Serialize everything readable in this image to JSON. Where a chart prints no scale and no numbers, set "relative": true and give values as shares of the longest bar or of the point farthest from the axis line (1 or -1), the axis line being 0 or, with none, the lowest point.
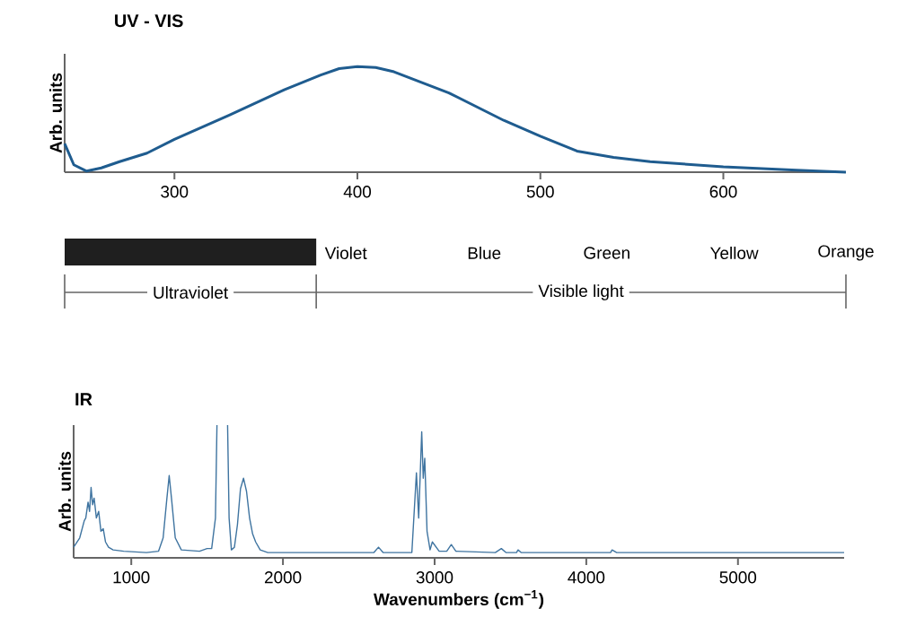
{
  "chart_data": [
    {
      "type": "line",
      "title": "UV - VIS",
      "ylabel": "Arb. units",
      "relative": true,
      "color": "#1f5c8f",
      "xlim": [
        240,
        667
      ],
      "xticks": [
        300,
        400,
        500,
        600
      ],
      "x": [
        240,
        245,
        252,
        260,
        270,
        285,
        300,
        330,
        360,
        380,
        390,
        400,
        410,
        420,
        450,
        480,
        500,
        520,
        540,
        560,
        600,
        640,
        667
      ],
      "values": [
        0.27,
        0.07,
        0.01,
        0.04,
        0.1,
        0.18,
        0.31,
        0.54,
        0.78,
        0.92,
        0.98,
        1,
        0.99,
        0.95,
        0.75,
        0.49,
        0.34,
        0.2,
        0.14,
        0.1,
        0.05,
        0.02,
        0.0
      ],
      "annotations": [
        "Violet",
        "Blue",
        "Green",
        "Yellow",
        "Orange",
        "Ultraviolet",
        "Visible light"
      ]
    },
    {
      "type": "line",
      "title": "IR",
      "ylabel": "Arb. units",
      "xlabel": "Wavenumbers (cm$^{−1}$)",
      "relative": true,
      "color": "#3f74a0",
      "xlim": [
        620,
        5700
      ],
      "xticks": [
        1000,
        2000,
        3000,
        4000,
        5000
      ],
      "x": [
        620,
        660,
        690,
        700,
        715,
        725,
        735,
        745,
        755,
        770,
        785,
        800,
        815,
        830,
        850,
        880,
        950,
        1100,
        1180,
        1210,
        1235,
        1250,
        1265,
        1290,
        1330,
        1450,
        1500,
        1530,
        1555,
        1565,
        1600,
        1635,
        1645,
        1660,
        1680,
        1700,
        1720,
        1740,
        1760,
        1780,
        1800,
        1820,
        1850,
        1900,
        2600,
        2630,
        2660,
        2850,
        2880,
        2895,
        2915,
        2925,
        2935,
        2950,
        2970,
        2985,
        3030,
        3080,
        3110,
        3140,
        3400,
        3440,
        3470,
        3540,
        3550,
        3570,
        4160,
        4170,
        4200,
        5700
      ],
      "values": [
        0.08,
        0.15,
        0.28,
        0.3,
        0.42,
        0.35,
        0.53,
        0.4,
        0.45,
        0.3,
        0.35,
        0.2,
        0.22,
        0.12,
        0.08,
        0.06,
        0.05,
        0.04,
        0.05,
        0.15,
        0.45,
        0.62,
        0.45,
        0.15,
        0.06,
        0.05,
        0.07,
        0.07,
        0.3,
        1,
        null,
        1,
        0.3,
        0.06,
        0.08,
        0.25,
        0.52,
        0.6,
        0.5,
        0.3,
        0.18,
        0.12,
        0.06,
        0.04,
        0.04,
        0.08,
        0.04,
        0.04,
        0.64,
        0.3,
        0.95,
        0.6,
        0.75,
        0.2,
        0.06,
        0.12,
        0.05,
        0.05,
        0.1,
        0.05,
        0.04,
        0.07,
        0.04,
        0.04,
        0.06,
        0.04,
        0.04,
        0.06,
        0.04,
        0.04
      ]
    }
  ]
}
